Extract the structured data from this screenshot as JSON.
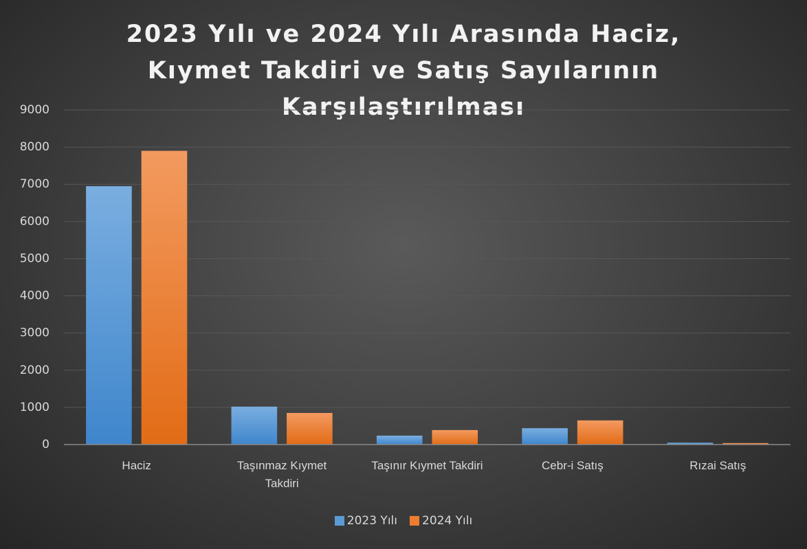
{
  "chart_data": {
    "type": "bar",
    "title": "2023 Yılı ve 2024 Yılı Arasında Haciz, Kıymet Takdiri ve Satış Sayılarının Karşılaştırılması",
    "categories": [
      "Haciz",
      "Taşınmaz Kıymet Takdiri",
      "Taşınır Kıymet Takdiri",
      "Cebr-i Satış",
      "Rızai Satış"
    ],
    "series": [
      {
        "name": "2023 Yılı",
        "color": "#5b9bd5",
        "values": [
          6950,
          1020,
          240,
          440,
          50
        ]
      },
      {
        "name": "2024 Yılı",
        "color": "#ed7d31",
        "values": [
          7900,
          850,
          390,
          650,
          40
        ]
      }
    ],
    "ylim": [
      0,
      9000
    ],
    "yticks": [
      0,
      1000,
      2000,
      3000,
      4000,
      5000,
      6000,
      7000,
      8000,
      9000
    ],
    "grid": true,
    "legend": "bottom"
  }
}
